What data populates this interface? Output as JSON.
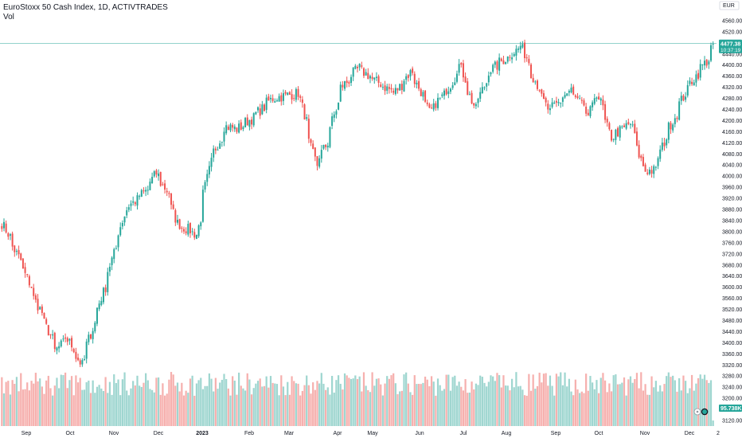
{
  "header": {
    "symbol_line": "EuroStoxx 50 Cash Index, 1D, ACTIVTRADES",
    "volume_label": "Vol"
  },
  "price_axis": {
    "currency": "EUR",
    "ticks": [
      4600,
      4560,
      4520,
      4480,
      4440,
      4400,
      4360,
      4320,
      4280,
      4240,
      4200,
      4160,
      4120,
      4080,
      4040,
      4000,
      3960,
      3920,
      3880,
      3840,
      3800,
      3760,
      3720,
      3680,
      3640,
      3600,
      3560,
      3520,
      3480,
      3440,
      3400,
      3360,
      3320,
      3280,
      3240,
      3200,
      3160,
      3120
    ],
    "ticks_text": [
      "4600.00",
      "4560.00",
      "4520.00",
      "4480.00",
      "4440.00",
      "4400.00",
      "4360.00",
      "4320.00",
      "4280.00",
      "4240.00",
      "4200.00",
      "4160.00",
      "4120.00",
      "4080.00",
      "4040.00",
      "4000.00",
      "3960.00",
      "3920.00",
      "3880.00",
      "3840.00",
      "3800.00",
      "3760.00",
      "3720.00",
      "3680.00",
      "3640.00",
      "3600.00",
      "3560.00",
      "3520.00",
      "3480.00",
      "3440.00",
      "3400.00",
      "3360.00",
      "3320.00",
      "3280.00",
      "3240.00",
      "3200.00",
      "3160.00",
      "3120.00"
    ],
    "last_price": "4477.38",
    "countdown": "10:37:19",
    "volume_badge": "95.738K"
  },
  "time_axis": {
    "labels": [
      "Sep",
      "Oct",
      "Nov",
      "Dec",
      "2023",
      "Feb",
      "Mar",
      "Apr",
      "May",
      "Jun",
      "Jul",
      "Aug",
      "Sep",
      "Oct",
      "Nov",
      "Dec",
      "2"
    ]
  },
  "colors": {
    "up": "#26a69a",
    "down": "#ef5350",
    "up_volume": "#9fd6d0",
    "down_volume": "#f6b0ae",
    "last_price_line": "#26a69a"
  },
  "chart_data": {
    "type": "candlestick",
    "title": "EuroStoxx 50 Cash Index, 1D, ACTIVTRADES",
    "ylim": [
      3120,
      4600
    ],
    "ylabel": "EUR",
    "grid": false,
    "waypoints": [
      {
        "date": "2022-08-22",
        "close": 3830
      },
      {
        "date": "2022-09-05",
        "close": 3660
      },
      {
        "date": "2022-09-12",
        "close": 3560
      },
      {
        "date": "2022-09-19",
        "close": 3470
      },
      {
        "date": "2022-09-26",
        "close": 3370
      },
      {
        "date": "2022-10-03",
        "close": 3420
      },
      {
        "date": "2022-10-13",
        "close": 3320
      },
      {
        "date": "2022-10-21",
        "close": 3470
      },
      {
        "date": "2022-10-28",
        "close": 3600
      },
      {
        "date": "2022-11-11",
        "close": 3880
      },
      {
        "date": "2022-11-25",
        "close": 3950
      },
      {
        "date": "2022-12-01",
        "close": 4010
      },
      {
        "date": "2022-12-09",
        "close": 3940
      },
      {
        "date": "2022-12-15",
        "close": 3830
      },
      {
        "date": "2022-12-28",
        "close": 3790
      },
      {
        "date": "2023-01-06",
        "close": 4050
      },
      {
        "date": "2023-01-16",
        "close": 4180
      },
      {
        "date": "2023-01-24",
        "close": 4170
      },
      {
        "date": "2023-02-03",
        "close": 4210
      },
      {
        "date": "2023-02-16",
        "close": 4280
      },
      {
        "date": "2023-03-06",
        "close": 4300
      },
      {
        "date": "2023-03-13",
        "close": 4120
      },
      {
        "date": "2023-03-17",
        "close": 4040
      },
      {
        "date": "2023-03-24",
        "close": 4120
      },
      {
        "date": "2023-04-03",
        "close": 4320
      },
      {
        "date": "2023-04-14",
        "close": 4390
      },
      {
        "date": "2023-04-26",
        "close": 4340
      },
      {
        "date": "2023-05-08",
        "close": 4300
      },
      {
        "date": "2023-05-19",
        "close": 4380
      },
      {
        "date": "2023-05-31",
        "close": 4230
      },
      {
        "date": "2023-06-13",
        "close": 4320
      },
      {
        "date": "2023-06-20",
        "close": 4400
      },
      {
        "date": "2023-06-30",
        "close": 4240
      },
      {
        "date": "2023-07-10",
        "close": 4380
      },
      {
        "date": "2023-07-31",
        "close": 4470
      },
      {
        "date": "2023-08-10",
        "close": 4330
      },
      {
        "date": "2023-08-18",
        "close": 4230
      },
      {
        "date": "2023-09-01",
        "close": 4310
      },
      {
        "date": "2023-09-13",
        "close": 4220
      },
      {
        "date": "2023-09-19",
        "close": 4300
      },
      {
        "date": "2023-09-28",
        "close": 4140
      },
      {
        "date": "2023-10-11",
        "close": 4190
      },
      {
        "date": "2023-10-20",
        "close": 4020
      },
      {
        "date": "2023-10-27",
        "close": 4020
      },
      {
        "date": "2023-11-03",
        "close": 4140
      },
      {
        "date": "2023-11-17",
        "close": 4310
      },
      {
        "date": "2023-11-24",
        "close": 4370
      },
      {
        "date": "2023-12-01",
        "close": 4420
      },
      {
        "date": "2023-12-05",
        "close": 4477.38
      }
    ],
    "last_close": 4477.38,
    "volume_last": "95.738K"
  },
  "icons": {
    "settings": "gear-icon",
    "logo": "tradingview-logo-icon"
  }
}
